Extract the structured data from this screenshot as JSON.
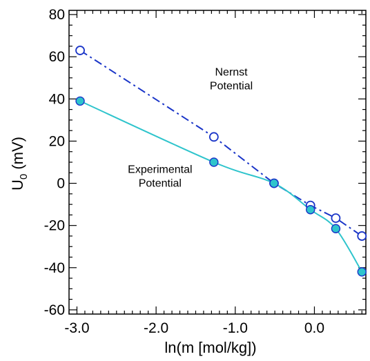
{
  "chart_data": {
    "type": "line",
    "title": "",
    "xlabel": "ln(m [mol/kg])",
    "ylabel_main": "U",
    "ylabel_sub": "0",
    "ylabel_unit": " (mV)",
    "xlim": [
      -3.1,
      0.65
    ],
    "ylim": [
      -62,
      82
    ],
    "xticks": [
      {
        "value": -3.0,
        "label": "-3.0"
      },
      {
        "value": -2.0,
        "label": "-2.0"
      },
      {
        "value": -1.0,
        "label": "-1.0"
      },
      {
        "value": 0.0,
        "label": "0.0"
      }
    ],
    "yticks": [
      {
        "value": 80,
        "label": "80"
      },
      {
        "value": 60,
        "label": "60"
      },
      {
        "value": 40,
        "label": "40"
      },
      {
        "value": 20,
        "label": "20"
      },
      {
        "value": 0,
        "label": "0"
      },
      {
        "value": -20,
        "label": "-20"
      },
      {
        "value": -40,
        "label": "-40"
      },
      {
        "value": -60,
        "label": "-60"
      }
    ],
    "grid": false,
    "series": [
      {
        "name": "Nernst Potential",
        "color": "#1a35c8",
        "line_style": "dash-dot",
        "marker": "open-circle",
        "x": [
          -2.96,
          -1.27,
          -0.51,
          -0.05,
          0.27,
          0.6
        ],
        "y": [
          63,
          22,
          0,
          -10.5,
          -16.5,
          -25
        ]
      },
      {
        "name": "Experimental Potential",
        "color": "#2ec4cc",
        "marker_fill": "#2ec4cc",
        "marker_edge": "#1a35c8",
        "line_style": "smooth-solid",
        "marker": "filled-circle",
        "x": [
          -2.96,
          -1.27,
          -0.51,
          -0.05,
          0.27,
          0.6
        ],
        "y": [
          39,
          10,
          0,
          -12.5,
          -21.5,
          -42
        ]
      }
    ],
    "annotations": [
      {
        "lines": [
          "Nernst",
          "Potential"
        ],
        "x": -1.05,
        "y": 51
      },
      {
        "lines": [
          "Experimental",
          "Potential"
        ],
        "x": -1.95,
        "y": 5
      }
    ]
  }
}
